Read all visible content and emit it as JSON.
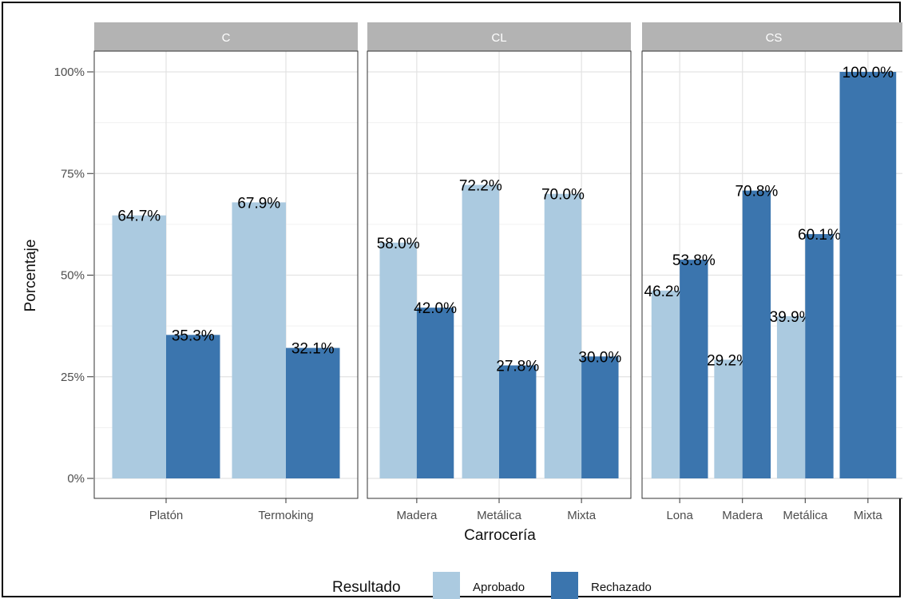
{
  "chart_data": {
    "type": "bar",
    "xlabel": "Carrocería",
    "ylabel": "Porcentaje",
    "ylim": [
      0,
      100
    ],
    "yticks": [
      "0%",
      "25%",
      "50%",
      "75%",
      "100%"
    ],
    "legend": {
      "title": "Resultado",
      "placement": "bottom",
      "entries": [
        {
          "name": "Aprobado",
          "color": "#abcae0"
        },
        {
          "name": "Rechazado",
          "color": "#3b75ae"
        }
      ]
    },
    "grid": true,
    "facets": [
      {
        "label": "C",
        "categories": [
          "Platón",
          "Termoking"
        ],
        "series": [
          {
            "name": "Aprobado",
            "values": [
              64.7,
              67.9
            ],
            "labels": [
              "64.7%",
              "67.9%"
            ]
          },
          {
            "name": "Rechazado",
            "values": [
              35.3,
              32.1
            ],
            "labels": [
              "35.3%",
              "32.1%"
            ]
          }
        ]
      },
      {
        "label": "CL",
        "categories": [
          "Madera",
          "Metálica",
          "Mixta"
        ],
        "series": [
          {
            "name": "Aprobado",
            "values": [
              58.0,
              72.2,
              70.0
            ],
            "labels": [
              "58.0%",
              "72.2%",
              "70.0%"
            ]
          },
          {
            "name": "Rechazado",
            "values": [
              42.0,
              27.8,
              30.0
            ],
            "labels": [
              "42.0%",
              "27.8%",
              "30.0%"
            ]
          }
        ]
      },
      {
        "label": "CS",
        "categories": [
          "Lona",
          "Madera",
          "Metálica",
          "Mixta"
        ],
        "series": [
          {
            "name": "Aprobado",
            "values": [
              46.2,
              29.2,
              39.9,
              null
            ],
            "labels": [
              "46.2%",
              "29.2%",
              "39.9%",
              null
            ]
          },
          {
            "name": "Rechazado",
            "values": [
              53.8,
              70.8,
              60.1,
              100.0
            ],
            "labels": [
              "53.8%",
              "70.8%",
              "60.1%",
              "100.0%"
            ]
          }
        ]
      }
    ]
  }
}
